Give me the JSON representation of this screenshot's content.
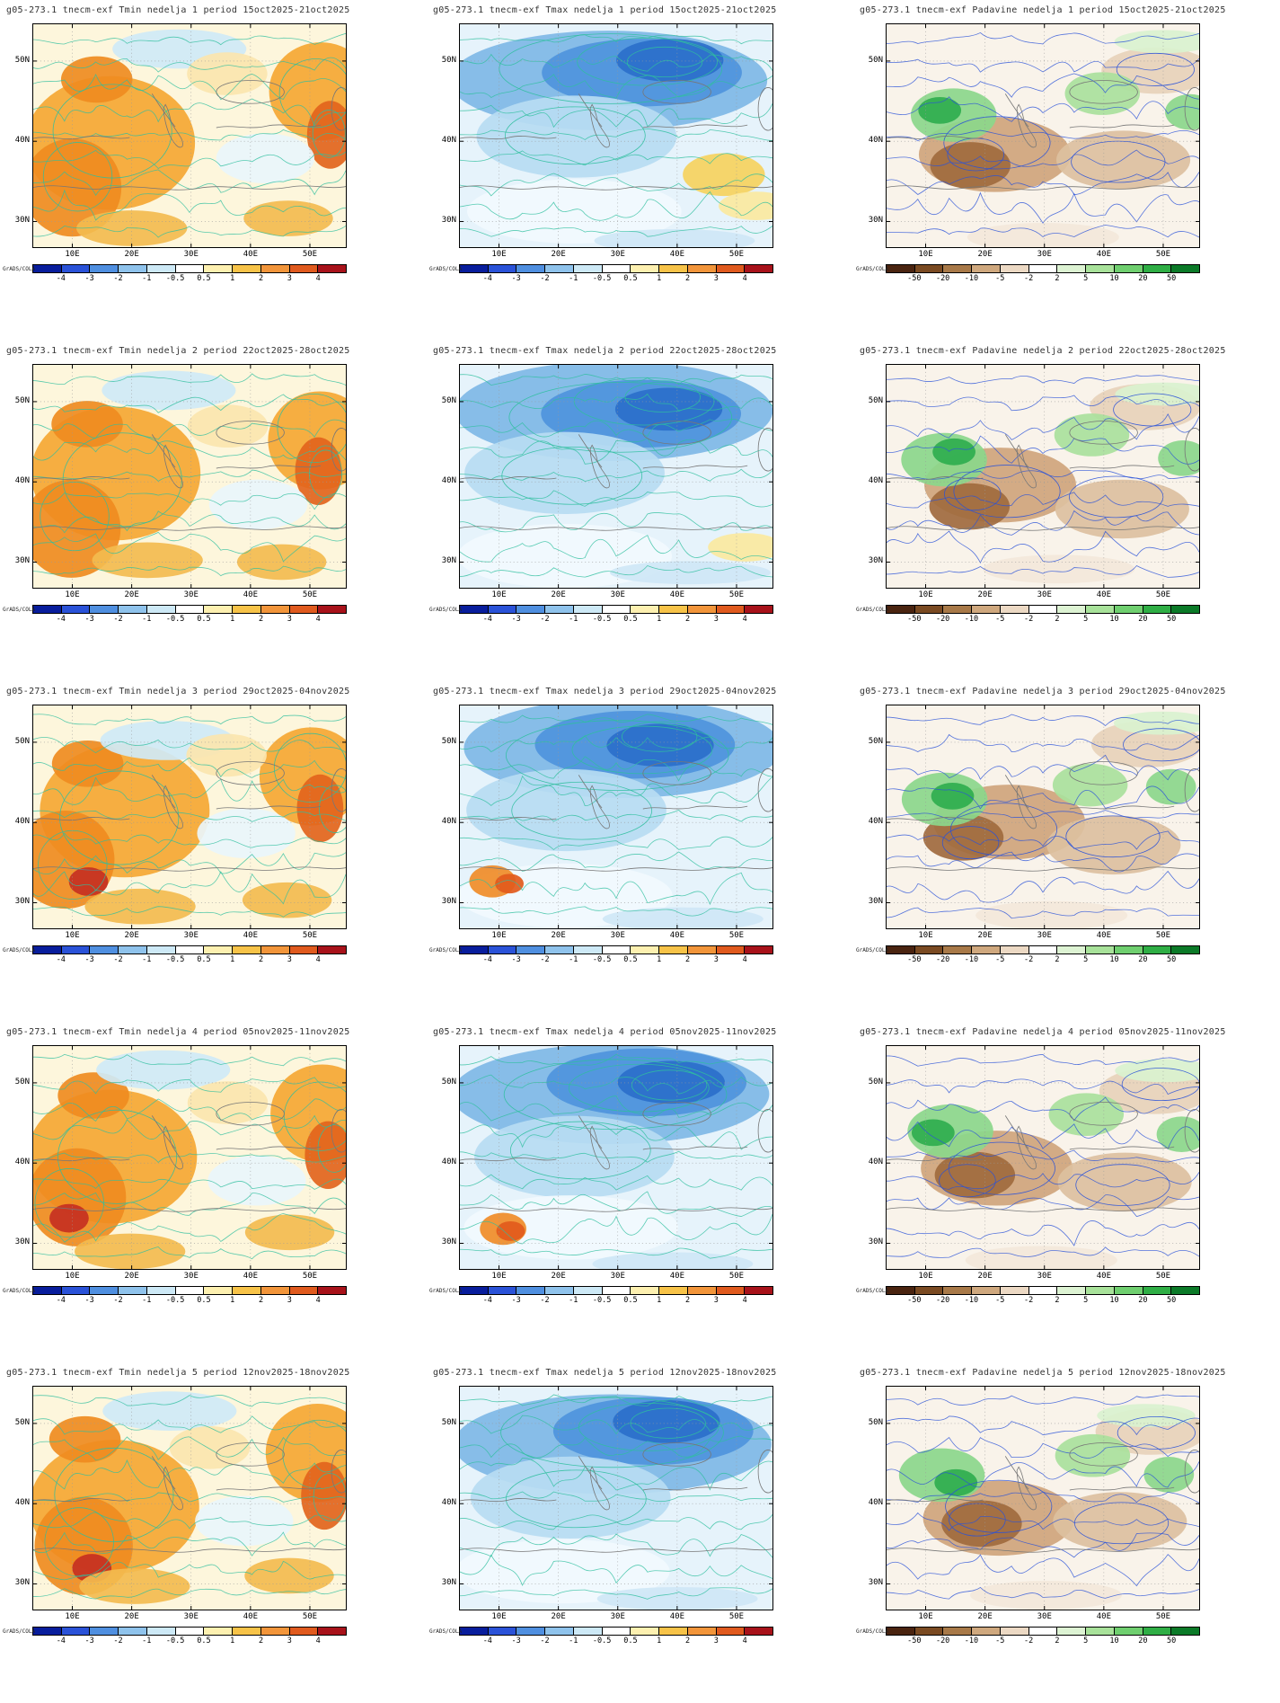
{
  "credit": "GrADS/COLA",
  "axes": {
    "lat": [
      "50N",
      "40N",
      "30N"
    ],
    "lon": [
      "10E",
      "20E",
      "30E",
      "40E",
      "50E"
    ]
  },
  "scales": {
    "temp": {
      "ticks": [
        "-4",
        "-3",
        "-2",
        "-1",
        "-0.5",
        "0.5",
        "1",
        "2",
        "3",
        "4"
      ],
      "colors": [
        "#081d9c",
        "#2a52d8",
        "#4f8fe0",
        "#8fc3ec",
        "#cde9f6",
        "#ffffff",
        "#fdf0b0",
        "#f7c348",
        "#f2953a",
        "#e05a1e",
        "#a8121a"
      ]
    },
    "precip": {
      "ticks": [
        "-50",
        "-20",
        "-10",
        "-5",
        "-2",
        "2",
        "5",
        "10",
        "20",
        "50"
      ],
      "colors": [
        "#4a2410",
        "#7a4a22",
        "#a87948",
        "#cfa87e",
        "#ecd9c4",
        "#ffffff",
        "#ddf3d3",
        "#a8e29a",
        "#6fcf6f",
        "#2fae45",
        "#0b7a28"
      ]
    }
  },
  "rows": [
    {
      "week": "1",
      "period": "15oct2025-21oct2025",
      "panels": [
        {
          "variable": "Tmin",
          "scale": "temp",
          "title": "g05-273.1 tnecm-exf Tmin nedelja 1 period 15oct2025-21oct2025"
        },
        {
          "variable": "Tmax",
          "scale": "temp",
          "title": "g05-273.1 tnecm-exf Tmax nedelja 1 period 15oct2025-21oct2025"
        },
        {
          "variable": "Padavine",
          "scale": "precip",
          "title": "g05-273.1 tnecm-exf Padavine nedelja 1 period 15oct2025-21oct2025"
        }
      ]
    },
    {
      "week": "2",
      "period": "22oct2025-28oct2025",
      "panels": [
        {
          "variable": "Tmin",
          "scale": "temp",
          "title": "g05-273.1 tnecm-exf Tmin nedelja 2 period 22oct2025-28oct2025"
        },
        {
          "variable": "Tmax",
          "scale": "temp",
          "title": "g05-273.1 tnecm-exf Tmax nedelja 2 period 22oct2025-28oct2025"
        },
        {
          "variable": "Padavine",
          "scale": "precip",
          "title": "g05-273.1 tnecm-exf Padavine nedelja 2 period 22oct2025-28oct2025"
        }
      ]
    },
    {
      "week": "3",
      "period": "29oct2025-04nov2025",
      "panels": [
        {
          "variable": "Tmin",
          "scale": "temp",
          "title": "g05-273.1 tnecm-exf Tmin nedelja 3 period 29oct2025-04nov2025"
        },
        {
          "variable": "Tmax",
          "scale": "temp",
          "title": "g05-273.1 tnecm-exf Tmax nedelja 3 period 29oct2025-04nov2025"
        },
        {
          "variable": "Padavine",
          "scale": "precip",
          "title": "g05-273.1 tnecm-exf Padavine nedelja 3 period 29oct2025-04nov2025"
        }
      ]
    },
    {
      "week": "4",
      "period": "05nov2025-11nov2025",
      "panels": [
        {
          "variable": "Tmin",
          "scale": "temp",
          "title": "g05-273.1 tnecm-exf Tmin nedelja 4 period 05nov2025-11nov2025"
        },
        {
          "variable": "Tmax",
          "scale": "temp",
          "title": "g05-273.1 tnecm-exf Tmax nedelja 4 period 05nov2025-11nov2025"
        },
        {
          "variable": "Padavine",
          "scale": "precip",
          "title": "g05-273.1 tnecm-exf Padavine nedelja 4 period 05nov2025-11nov2025"
        }
      ]
    },
    {
      "week": "5",
      "period": "12nov2025-18nov2025",
      "panels": [
        {
          "variable": "Tmin",
          "scale": "temp",
          "title": "g05-273.1 tnecm-exf Tmin nedelja 5 period 12nov2025-18nov2025"
        },
        {
          "variable": "Tmax",
          "scale": "temp",
          "title": "g05-273.1 tnecm-exf Tmax nedelja 5 period 12nov2025-18nov2025"
        },
        {
          "variable": "Padavine",
          "scale": "precip",
          "title": "g05-273.1 tnecm-exf Padavine nedelja 5 period 12nov2025-18nov2025"
        }
      ]
    }
  ]
}
